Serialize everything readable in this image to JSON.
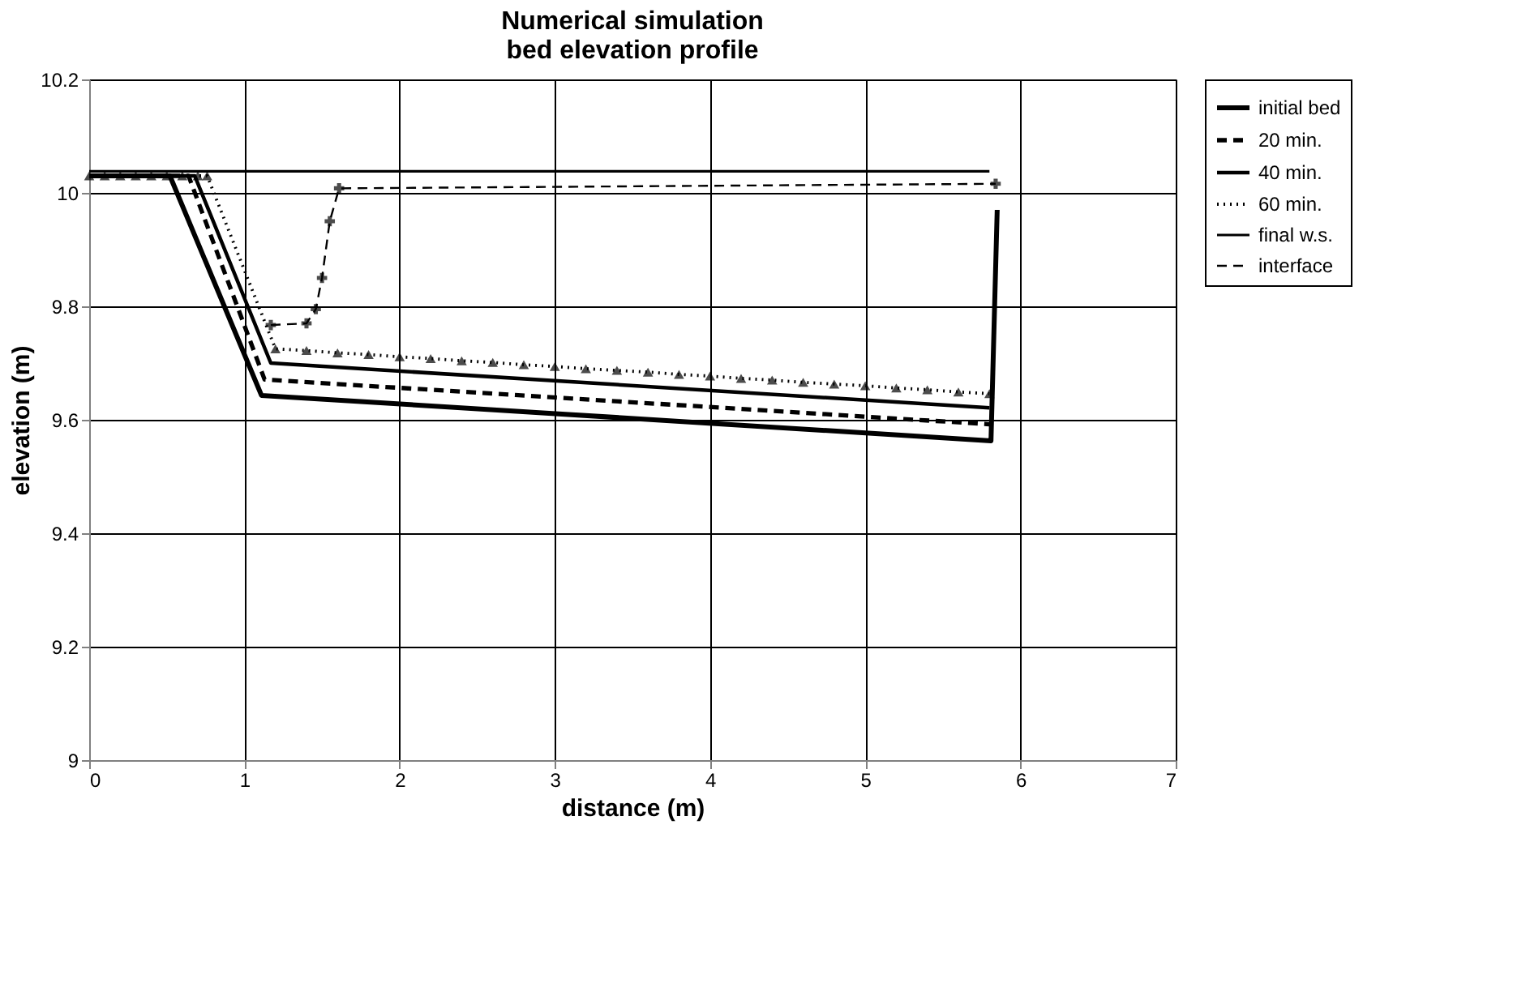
{
  "chart_data": {
    "type": "line",
    "title": [
      "Numerical simulation",
      "bed elevation profile"
    ],
    "xlabel": "distance  (m)",
    "ylabel": "elevation (m)",
    "xlim": [
      0,
      7
    ],
    "xticks": [
      0,
      1,
      2,
      3,
      4,
      5,
      6,
      7
    ],
    "ylim": [
      9,
      10.2
    ],
    "yticks": [
      9,
      9.2,
      9.4,
      9.6,
      9.8,
      10,
      10.2
    ],
    "grid": true,
    "legend": "right",
    "series": [
      {
        "name": "initial bed",
        "color": "#000000",
        "line_style": "solid",
        "marker": "none",
        "x": [
          0,
          0.52,
          1.11,
          5.81,
          5.85
        ],
        "values": [
          10.03,
          10.03,
          9.643,
          9.563,
          9.97
        ]
      },
      {
        "name": "20 min.",
        "color": "#000000",
        "line_style": "dashed",
        "marker": "none",
        "x": [
          0,
          0.64,
          1.13,
          5.8
        ],
        "values": [
          10.03,
          10.03,
          9.671,
          9.592
        ]
      },
      {
        "name": "40 min.",
        "color": "#000000",
        "line_style": "solid",
        "marker": "none",
        "x": [
          0,
          0.68,
          1.17,
          5.8
        ],
        "values": [
          10.03,
          10.03,
          9.7,
          9.621
        ]
      },
      {
        "name": "60 min.",
        "color": "#000000",
        "line_style": "dotted",
        "marker": "triangle",
        "x": [
          0,
          0.1,
          0.2,
          0.3,
          0.4,
          0.5,
          0.6,
          0.7,
          0.76,
          1.2,
          1.4,
          1.6,
          1.8,
          2.0,
          2.2,
          2.4,
          2.6,
          2.8,
          3.0,
          3.2,
          3.4,
          3.6,
          3.8,
          4.0,
          4.2,
          4.4,
          4.6,
          4.8,
          5.0,
          5.2,
          5.4,
          5.6,
          5.8
        ],
        "values": [
          10.03,
          10.03,
          10.03,
          10.03,
          10.03,
          10.03,
          10.03,
          10.03,
          10.03,
          9.725,
          9.722,
          9.718,
          9.715,
          9.711,
          9.708,
          9.704,
          9.701,
          9.697,
          9.694,
          9.69,
          9.687,
          9.684,
          9.68,
          9.677,
          9.673,
          9.67,
          9.666,
          9.663,
          9.66,
          9.656,
          9.653,
          9.649,
          9.646
        ]
      },
      {
        "name": "final w.s.",
        "color": "#000000",
        "line_style": "solid",
        "marker": "none",
        "x": [
          0,
          5.8
        ],
        "values": [
          10.038,
          10.038
        ]
      },
      {
        "name": "interface",
        "color": "#000000",
        "line_style": "dashed",
        "marker": "cross",
        "x": [
          1.17,
          1.4,
          1.46,
          1.5,
          1.55,
          1.61,
          5.84
        ],
        "values": [
          9.767,
          9.77,
          9.795,
          9.85,
          9.95,
          10.008,
          10.016
        ]
      }
    ]
  }
}
